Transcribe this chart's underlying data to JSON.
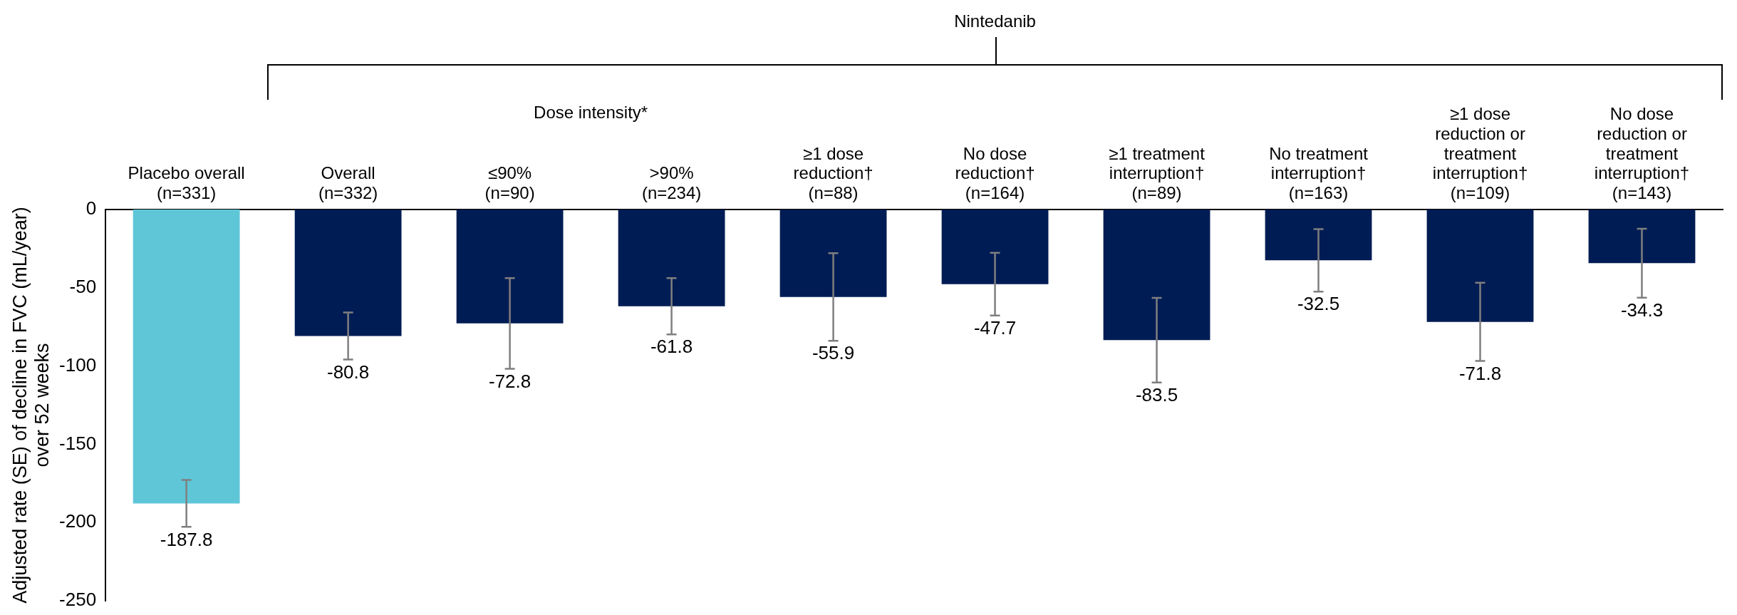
{
  "chart_data": {
    "type": "bar",
    "ylabel": "Adjusted rate (SE) of decline in FVC (mL/year)\nover 52 weeks",
    "categories": [
      "Placebo overall\n(n=331)",
      "Overall\n(n=332)",
      "≤90%\n(n=90)",
      ">90%\n(n=234)",
      "≥1 dose\nreduction†\n(n=88)",
      "No dose\nreduction†\n(n=164)",
      "≥1 treatment\ninterruption†\n(n=89)",
      "No treatment\ninterruption†\n(n=163)",
      "≥1 dose\nreduction or\ntreatment\ninterruption†\n(n=109)",
      "No dose\nreduction or\ntreatment\ninterruption†\n(n=143)"
    ],
    "values": [
      -187.8,
      -80.8,
      -72.8,
      -61.8,
      -55.9,
      -47.7,
      -83.5,
      -32.5,
      -71.8,
      -34.3
    ],
    "errors": [
      15,
      15,
      29,
      18,
      28,
      20,
      27,
      20,
      25,
      22
    ],
    "colors": [
      "#5fc6d8",
      "#001c54",
      "#001c54",
      "#001c54",
      "#001c54",
      "#001c54",
      "#001c54",
      "#001c54",
      "#001c54",
      "#001c54"
    ],
    "ylim": [
      -250,
      0
    ],
    "yticks": [
      0,
      -50,
      -100,
      -150,
      -200,
      -250
    ],
    "data_labels": true,
    "grid": false,
    "legend": false,
    "annotations": [
      "Nintedanib",
      "Dose intensity*"
    ]
  }
}
